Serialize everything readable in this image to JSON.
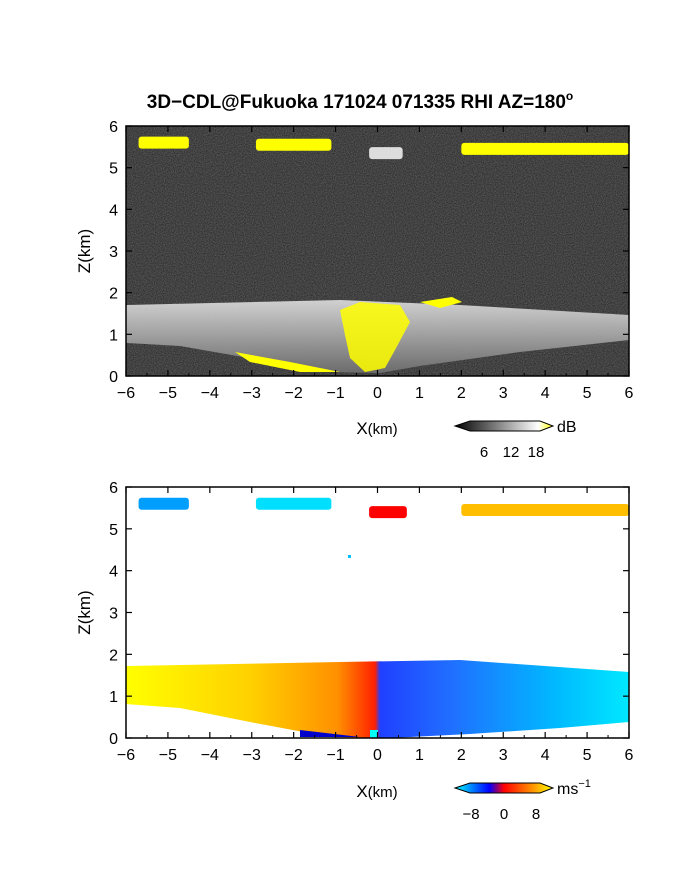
{
  "title": "3D−CDL@Fukuoka 171024 071335 RHI AZ=180",
  "title_superscript": "o",
  "chart_data": [
    {
      "type": "heatmap",
      "name": "backscatter",
      "xlabel": "X",
      "xlabel_unit": "(km)",
      "ylabel": "Z(km)",
      "xlim": [
        -6,
        6
      ],
      "ylim": [
        0,
        6
      ],
      "x_ticks": [
        "−6",
        "−5",
        "−4",
        "−3",
        "−2",
        "−1",
        "0",
        "1",
        "2",
        "3",
        "4",
        "5",
        "6"
      ],
      "y_ticks": [
        "0",
        "1",
        "2",
        "3",
        "4",
        "5",
        "6"
      ],
      "colorbar": {
        "unit": "dB",
        "ticks": [
          "6",
          "12",
          "18"
        ],
        "colors": [
          "#000000",
          "#ffffff",
          "#ffff00"
        ]
      },
      "echo_layers": [
        {
          "x_range": [
            -5.7,
            -4.5
          ],
          "z": 5.6,
          "level": "high"
        },
        {
          "x_range": [
            -2.9,
            -1.1
          ],
          "z": 5.55,
          "level": "high"
        },
        {
          "x_range": [
            -0.2,
            0.6
          ],
          "z": 5.35,
          "level": "medium"
        },
        {
          "x_range": [
            2.0,
            6.0
          ],
          "z": 5.45,
          "level": "high"
        }
      ],
      "boundary_layer_top_km": 1.75
    },
    {
      "type": "heatmap",
      "name": "doppler-velocity",
      "xlabel": "X",
      "xlabel_unit": "(km)",
      "ylabel": "Z(km)",
      "xlim": [
        -6,
        6
      ],
      "ylim": [
        0,
        6
      ],
      "x_ticks": [
        "−6",
        "−5",
        "−4",
        "−3",
        "−2",
        "−1",
        "0",
        "1",
        "2",
        "3",
        "4",
        "5",
        "6"
      ],
      "y_ticks": [
        "0",
        "1",
        "2",
        "3",
        "4",
        "5",
        "6"
      ],
      "colorbar": {
        "unit": "ms",
        "unit_exponent": "−1",
        "ticks": [
          "−8",
          "0",
          "8"
        ],
        "colors": [
          "#00ffff",
          "#0000ff",
          "#ff0000",
          "#ffff00"
        ]
      },
      "echo_layers": [
        {
          "x_range": [
            -5.7,
            -4.5
          ],
          "z": 5.6,
          "velocity": -5
        },
        {
          "x_range": [
            -2.9,
            -1.1
          ],
          "z": 5.6,
          "velocity": -7
        },
        {
          "x_range": [
            -0.2,
            0.7
          ],
          "z": 5.4,
          "velocity": 0
        },
        {
          "x_range": [
            2.0,
            6.0
          ],
          "z": 5.45,
          "velocity": 6
        }
      ],
      "boundary_layer_top_km": 1.75
    }
  ]
}
